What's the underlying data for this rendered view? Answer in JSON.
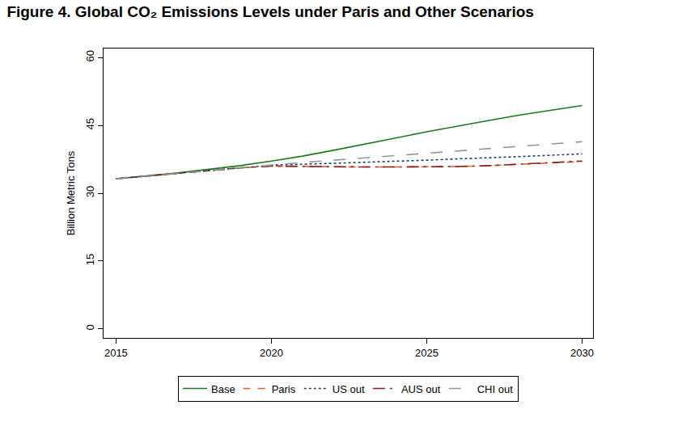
{
  "chart_data": {
    "type": "line",
    "title": "Figure 4. Global CO₂ Emissions Levels under Paris and Other Scenarios",
    "y_label": "Billion Metric Tons",
    "x": [
      2015,
      2016,
      2017,
      2018,
      2019,
      2020,
      2021,
      2022,
      2023,
      2024,
      2025,
      2026,
      2027,
      2028,
      2029,
      2030
    ],
    "series": [
      {
        "name": "Base",
        "color": "#1b7a1b",
        "line_style": "solid",
        "values": [
          33.2,
          33.8,
          34.5,
          35.3,
          36.1,
          37.1,
          38.2,
          39.5,
          40.8,
          42.2,
          43.6,
          44.9,
          46.1,
          47.3,
          48.3,
          49.4
        ]
      },
      {
        "name": "Paris",
        "color": "#f05a28",
        "line_style": "dash",
        "values": [
          33.2,
          33.8,
          34.4,
          35.0,
          35.6,
          36.0,
          35.9,
          35.9,
          35.8,
          35.8,
          35.8,
          35.9,
          36.1,
          36.4,
          36.7,
          37.0
        ]
      },
      {
        "name": "US out",
        "color": "#1f3a6e",
        "line_style": "dot",
        "values": [
          33.2,
          33.8,
          34.4,
          35.0,
          35.6,
          36.2,
          36.4,
          36.6,
          36.8,
          37.1,
          37.3,
          37.6,
          37.8,
          38.1,
          38.4,
          38.7
        ]
      },
      {
        "name": "AUS out",
        "color": "#8b1a1a",
        "line_style": "longdashdot",
        "values": [
          33.2,
          33.8,
          34.4,
          35.0,
          35.6,
          36.0,
          35.9,
          35.9,
          35.8,
          35.8,
          35.8,
          35.9,
          36.1,
          36.4,
          36.7,
          37.1
        ]
      },
      {
        "name": "CHI out",
        "color": "#8a9a9a",
        "line_style": "longdash",
        "values": [
          33.2,
          33.8,
          34.4,
          35.0,
          35.7,
          36.3,
          36.8,
          37.3,
          37.8,
          38.3,
          38.8,
          39.3,
          39.9,
          40.4,
          40.9,
          41.4
        ]
      }
    ],
    "xlim": [
      2014.6,
      2030.35
    ],
    "xticks": [
      2015,
      2020,
      2025,
      2030
    ],
    "ylim": [
      -2,
      62
    ],
    "yticks": [
      0,
      15,
      30,
      45,
      60
    ],
    "grid": false,
    "legend": "bottom"
  }
}
